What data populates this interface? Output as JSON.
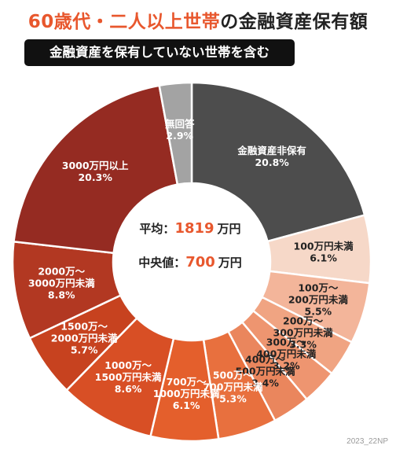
{
  "title_part1": "60歳代・二人以上世帯",
  "title_part2": "の金融資産保有額",
  "subtitle": "金融資産を保有していない世帯を含む",
  "center": {
    "average_label": "平均：",
    "average_value": "1819",
    "median_label": "中央値：",
    "median_value": "700",
    "unit": "万円"
  },
  "footer": "2023_22NP",
  "chart_data": {
    "type": "pie",
    "donut": true,
    "slices": [
      {
        "label": "金融資産非保有",
        "value": 20.8,
        "display": "20.8%",
        "color": "#4d4d4d",
        "text_color": "#ffffff"
      },
      {
        "label": "100万円未満",
        "value": 6.1,
        "display": "6.1%",
        "color": "#f6d8c8",
        "text_color": "#222222"
      },
      {
        "label": "100万～\n200万円未満",
        "value": 5.5,
        "display": "5.5%",
        "color": "#f3b59a",
        "text_color": "#222222"
      },
      {
        "label": "200万～\n300万円未満",
        "value": 3.3,
        "display": "3.3%",
        "color": "#f0a482",
        "text_color": "#222222"
      },
      {
        "label": "300万～\n400万円未満",
        "value": 3.2,
        "display": "3.2%",
        "color": "#ee9570",
        "text_color": "#222222"
      },
      {
        "label": "400万～\n500万円未満",
        "value": 3.4,
        "display": "3.4%",
        "color": "#ea865d",
        "text_color": "#222222"
      },
      {
        "label": "500万～\n700万円未満",
        "value": 5.3,
        "display": "5.3%",
        "color": "#e8703e",
        "text_color": "#ffffff"
      },
      {
        "label": "700万～\n1000万円未満",
        "value": 6.1,
        "display": "6.1%",
        "color": "#e45f2c",
        "text_color": "#ffffff"
      },
      {
        "label": "1000万～\n1500万円未満",
        "value": 8.6,
        "display": "8.6%",
        "color": "#d84f25",
        "text_color": "#ffffff"
      },
      {
        "label": "1500万～\n2000万円未満",
        "value": 5.7,
        "display": "5.7%",
        "color": "#c7421f",
        "text_color": "#ffffff"
      },
      {
        "label": "2000万～\n3000万円未満",
        "value": 8.8,
        "display": "8.8%",
        "color": "#b23822",
        "text_color": "#ffffff"
      },
      {
        "label": "3000万円以上",
        "value": 20.3,
        "display": "20.3%",
        "color": "#952b22",
        "text_color": "#ffffff"
      },
      {
        "label": "無回答",
        "value": 2.9,
        "display": "2.9%",
        "color": "#a3a3a3",
        "text_color": "#ffffff"
      }
    ]
  }
}
